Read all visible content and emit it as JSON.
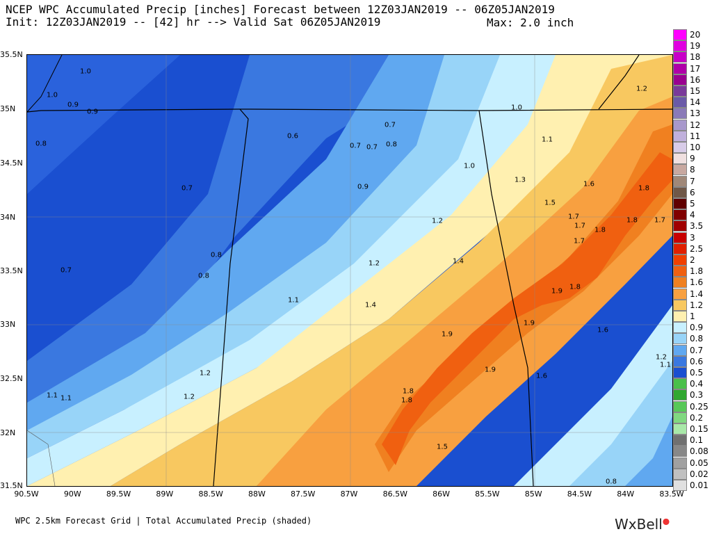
{
  "header": {
    "title": "NCEP WPC Accumulated Precip [inches] Forecast between 12Z03JAN2019 -- 06Z05JAN2019",
    "init": "Init: 12Z03JAN2019 -- [42] hr --> Valid Sat 06Z05JAN2019",
    "max": "Max: 2.0 inch"
  },
  "axes": {
    "lat_labels": [
      "35.5N",
      "35N",
      "34.5N",
      "34N",
      "33.5N",
      "33N",
      "32.5N",
      "32N",
      "31.5N"
    ],
    "lon_labels": [
      "90.5W",
      "90W",
      "89.5W",
      "89W",
      "88.5W",
      "88W",
      "87.5W",
      "87W",
      "86.5W",
      "86W",
      "85.5W",
      "85W",
      "84.5W",
      "84W",
      "83.5W"
    ]
  },
  "map_values": [
    "1.0",
    "1.0",
    "0.9",
    "0.9",
    "0.8",
    "0.7",
    "0.6",
    "0.7",
    "0.7",
    "0.8",
    "0.7",
    "0.9",
    "1.0",
    "1.0",
    "1.1",
    "1.2",
    "1.3",
    "1.6",
    "1.8",
    "1.5",
    "1.7",
    "1.7",
    "1.8",
    "1.8",
    "1.7",
    "1.7",
    "0.8",
    "0.8",
    "0.7",
    "1.2",
    "1.2",
    "1.4",
    "1.4",
    "1.1",
    "1.9",
    "1.8",
    "1.9",
    "1.9",
    "1.6",
    "1.9",
    "1.8",
    "1.8",
    "1.6",
    "1.2",
    "1.1",
    "1.2",
    "1.1",
    "1.1",
    "1.2",
    "1.5",
    "0.8"
  ],
  "legend": {
    "labels": [
      "20",
      "19",
      "18",
      "17",
      "16",
      "15",
      "14",
      "13",
      "12",
      "11",
      "10",
      "9",
      "8",
      "7",
      "6",
      "5",
      "4",
      "3.5",
      "3",
      "2.5",
      "2",
      "1.8",
      "1.6",
      "1.4",
      "1.2",
      "1",
      "0.9",
      "0.8",
      "0.7",
      "0.6",
      "0.5",
      "0.4",
      "0.3",
      "0.25",
      "0.2",
      "0.15",
      "0.1",
      "0.08",
      "0.05",
      "0.02",
      "0.01"
    ],
    "colors": [
      "#ff00ff",
      "#e000e0",
      "#c800c8",
      "#b000a8",
      "#9a0090",
      "#7a3a9a",
      "#6a5aa8",
      "#8a7ab8",
      "#a898cc",
      "#c0b0dc",
      "#d8cce8",
      "#f0e0e0",
      "#c8a8a0",
      "#a08878",
      "#705848",
      "#600000",
      "#800000",
      "#a00000",
      "#c80000",
      "#e02000",
      "#f04000",
      "#f06010",
      "#f08020",
      "#f8a040",
      "#f8c860",
      "#fff0b0",
      "#c8f0ff",
      "#98d4f8",
      "#60a8f0",
      "#3a78e0",
      "#1a4fd0",
      "#4ac04a",
      "#30a830",
      "#58c858",
      "#80d880",
      "#a8e8a8",
      "#707070",
      "#888888",
      "#a0a0a0",
      "#c0c0c0",
      "#e0e0e0"
    ]
  },
  "footer": {
    "text": "WPC 2.5km Forecast Grid | Total Accumulated Precip (shaded)",
    "brand": "WxBell"
  }
}
